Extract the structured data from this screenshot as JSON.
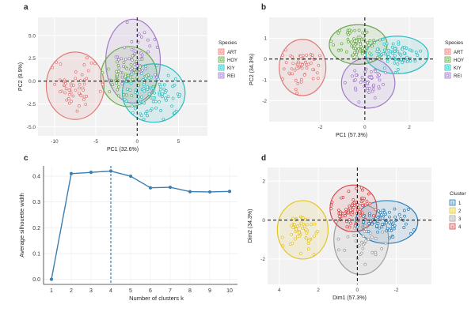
{
  "panel_letters": [
    "a",
    "b",
    "c",
    "d"
  ],
  "colors": {
    "ART": "#e07a78",
    "HOY": "#6aa84f",
    "KIY": "#2bbcc0",
    "REI": "#a07ac8",
    "c1": "#2c7fb8",
    "c2": "#e5c322",
    "c3": "#9e9e9e",
    "c4": "#d6484a",
    "line_c": "#3a7fb0",
    "panel_bg": "#f2f2f2"
  },
  "chart_data": [
    {
      "id": "a",
      "type": "scatter",
      "xlabel": "PC1 (32.6%)",
      "ylabel": "PC2 (9.9%)",
      "xlim": [
        -12,
        8.5
      ],
      "ylim": [
        -6,
        7
      ],
      "xticks": [
        -10,
        -5,
        0,
        5
      ],
      "yticks": [
        -5.0,
        -2.5,
        0.0,
        2.5,
        5.0
      ],
      "ytick_labels": [
        "-5.0",
        "-2.5",
        "0.0",
        "2.5",
        "5.0"
      ],
      "legend": {
        "title": "Species",
        "entries": [
          "ART",
          "HOY",
          "KIY",
          "REI"
        ],
        "placement": "right"
      },
      "groups": [
        {
          "name": "ART",
          "cx": -7.5,
          "cy": -0.5,
          "rx": 3.5,
          "ry": 3.7,
          "sx": 2.0,
          "sy": 1.6,
          "n": 55
        },
        {
          "name": "REI",
          "cx": -0.5,
          "cy": 2.2,
          "rx": 3.3,
          "ry": 4.6,
          "sx": 1.9,
          "sy": 1.8,
          "n": 55
        },
        {
          "name": "HOY",
          "cx": -1.0,
          "cy": 0.5,
          "rx": 3.4,
          "ry": 3.3,
          "sx": 1.9,
          "sy": 1.5,
          "n": 55
        },
        {
          "name": "KIY",
          "cx": 2.0,
          "cy": -1.3,
          "rx": 3.8,
          "ry": 3.2,
          "sx": 2.1,
          "sy": 1.4,
          "n": 80
        }
      ]
    },
    {
      "id": "b",
      "type": "scatter",
      "xlabel": "PC1 (57.3%)",
      "ylabel": "PC2 (34.3%)",
      "xlim": [
        -4.3,
        3.1
      ],
      "ylim": [
        -3.0,
        2.0
      ],
      "xticks": [
        -2,
        0,
        2
      ],
      "yticks": [
        -2,
        -1,
        0,
        1
      ],
      "legend": {
        "title": "Species",
        "entries": [
          "ART",
          "HOY",
          "KIY",
          "REI"
        ],
        "placement": "right"
      },
      "groups": [
        {
          "name": "ART",
          "cx": -2.8,
          "cy": -0.4,
          "rx": 1.05,
          "ry": 1.35,
          "sx": 0.5,
          "sy": 0.55,
          "n": 55
        },
        {
          "name": "HOY",
          "cx": -0.3,
          "cy": 0.7,
          "rx": 1.3,
          "ry": 0.95,
          "sx": 0.6,
          "sy": 0.4,
          "n": 80
        },
        {
          "name": "KIY",
          "cx": 1.45,
          "cy": 0.2,
          "rx": 1.4,
          "ry": 0.9,
          "sx": 0.6,
          "sy": 0.4,
          "n": 75
        },
        {
          "name": "REI",
          "cx": 0.15,
          "cy": -1.15,
          "rx": 1.2,
          "ry": 1.2,
          "sx": 0.5,
          "sy": 0.5,
          "n": 45
        }
      ]
    },
    {
      "id": "c",
      "type": "line",
      "xlabel": "Number of clusters k",
      "ylabel": "Average silhouette width",
      "x": [
        1,
        2,
        3,
        4,
        5,
        6,
        7,
        8,
        9,
        10
      ],
      "values": [
        0.0,
        0.41,
        0.415,
        0.42,
        0.4,
        0.355,
        0.357,
        0.34,
        0.339,
        0.341
      ],
      "xticks": [
        1,
        2,
        3,
        4,
        5,
        6,
        7,
        8,
        9,
        10
      ],
      "yticks": [
        0.0,
        0.1,
        0.2,
        0.3,
        0.4
      ],
      "ytick_labels": [
        "0.0",
        "0.1",
        "0.2",
        "0.3",
        "0.4"
      ],
      "ylim": [
        -0.02,
        0.44
      ],
      "vline_at": 4
    },
    {
      "id": "d",
      "type": "scatter",
      "xlabel": "Dim1 (57.3%)",
      "ylabel": "Dim2 (34.3%)",
      "xlim": [
        4.6,
        -3.8
      ],
      "ylim": [
        -3.3,
        2.7
      ],
      "xticks": [
        4,
        2,
        0,
        -2
      ],
      "yticks": [
        -2,
        0,
        2
      ],
      "legend": {
        "title": "Cluster",
        "entries": [
          "1",
          "2",
          "3",
          "4"
        ],
        "placement": "right"
      },
      "groups": [
        {
          "name": "2",
          "cx": 2.8,
          "cy": -0.5,
          "rx": 1.3,
          "ry": 1.5,
          "sx": 0.55,
          "sy": 0.6,
          "n": 55
        },
        {
          "name": "3",
          "cx": -0.2,
          "cy": -1.0,
          "rx": 1.4,
          "ry": 1.8,
          "sx": 0.6,
          "sy": 0.75,
          "n": 40
        },
        {
          "name": "4",
          "cx": 0.2,
          "cy": 0.6,
          "rx": 1.2,
          "ry": 1.2,
          "sx": 0.6,
          "sy": 0.5,
          "n": 80
        },
        {
          "name": "1",
          "cx": -1.5,
          "cy": -0.1,
          "rx": 1.6,
          "ry": 1.1,
          "sx": 0.7,
          "sy": 0.45,
          "n": 70
        }
      ]
    }
  ]
}
